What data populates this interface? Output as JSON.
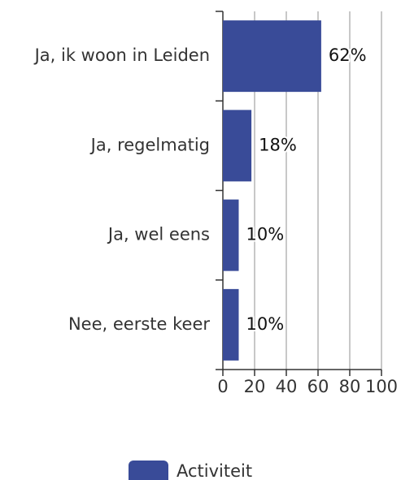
{
  "chart_data": {
    "type": "bar",
    "orientation": "horizontal",
    "categories": [
      "Ja, ik woon in Leiden",
      "Ja, regelmatig",
      "Ja, wel eens",
      "Nee, eerste keer"
    ],
    "series": [
      {
        "name": "Activiteit",
        "color": "#394b98",
        "values": [
          62,
          18,
          10,
          10
        ],
        "value_labels": [
          "62%",
          "18%",
          "10%",
          "10%"
        ]
      }
    ],
    "xlim": [
      0,
      100
    ],
    "xticks": [
      0,
      20,
      40,
      60,
      80,
      100
    ],
    "grid": true,
    "legend": "bottom"
  }
}
